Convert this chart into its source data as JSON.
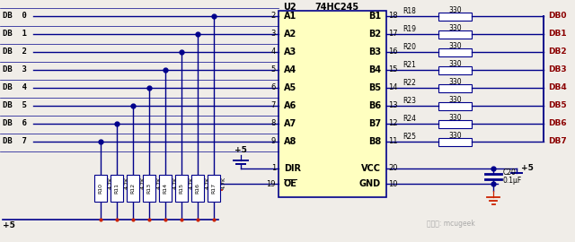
{
  "bg_color": "#f0ede8",
  "line_color": "#00008B",
  "text_color": "#000000",
  "red_color": "#CC2200",
  "chip_fill": "#ffffc0",
  "chip_border": "#00008B",
  "db_labels_left": [
    "DB  0",
    "DB  1",
    "DB  2",
    "DB  3",
    "DB  4",
    "DB  5",
    "DB  6",
    "DB  7"
  ],
  "a_pins": [
    "A1",
    "A2",
    "A3",
    "A4",
    "A5",
    "A6",
    "A7",
    "A8"
  ],
  "b_pins": [
    "B1",
    "B2",
    "B3",
    "B4",
    "B5",
    "B6",
    "B7",
    "B8"
  ],
  "a_pins_num": [
    "2",
    "3",
    "4",
    "5",
    "6",
    "7",
    "8",
    "9"
  ],
  "b_pins_num": [
    "18",
    "17",
    "16",
    "15",
    "14",
    "13",
    "12",
    "11"
  ],
  "r_left_labels": [
    "R10",
    "R11",
    "R12",
    "R13",
    "R14",
    "R15",
    "R16",
    "R17"
  ],
  "r_right_labels": [
    "R18",
    "R19",
    "R20",
    "R21",
    "R22",
    "R23",
    "R24",
    "R25"
  ],
  "db_labels_right": [
    "DB0",
    "DB1",
    "DB2",
    "DB3",
    "DB4",
    "DB5",
    "DB6",
    "DB7"
  ],
  "watermark": "微信号: mcugeek"
}
